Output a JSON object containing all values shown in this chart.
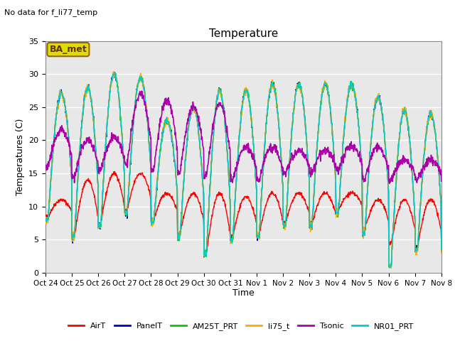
{
  "title": "Temperature",
  "note": "No data for f_li77_temp",
  "ylabel": "Temperatures (C)",
  "xlabel": "Time",
  "ylim": [
    0,
    35
  ],
  "yticks": [
    0,
    5,
    10,
    15,
    20,
    25,
    30,
    35
  ],
  "series": {
    "AirT": {
      "color": "#ff0000",
      "lw": 1.0
    },
    "PanelT": {
      "color": "#0000cc",
      "lw": 1.0
    },
    "AM25T_PRT": {
      "color": "#00cc00",
      "lw": 1.0
    },
    "li75_t": {
      "color": "#ffaa00",
      "lw": 1.0
    },
    "Tsonic": {
      "color": "#aa00aa",
      "lw": 1.2
    },
    "NR01_PRT": {
      "color": "#00cccc",
      "lw": 1.0
    }
  },
  "legend_box_color": "#dddd00",
  "legend_box_text": "BA_met",
  "background_color": "#e8e8e8",
  "grid_color": "#ffffff",
  "fig_bg": "#ffffff",
  "xtick_labels": [
    "Oct 24",
    "Oct 25",
    "Oct 26",
    "Oct 27",
    "Oct 28",
    "Oct 29",
    "Oct 30",
    "Oct 31",
    "Nov 1",
    "Nov 2",
    "Nov 3",
    "Nov 4",
    "Nov 5",
    "Nov 6",
    "Nov 7",
    "Nov 8"
  ],
  "n_days": 15,
  "pts_per_day": 96,
  "daily_min_air": [
    8.5,
    5.5,
    7.5,
    9.5,
    8.0,
    6.0,
    3.0,
    5.5,
    5.8,
    7.5,
    7.5,
    9.5,
    6.5,
    4.5,
    4.0
  ],
  "daily_max_air": [
    11.0,
    14.0,
    15.0,
    15.0,
    12.0,
    12.0,
    12.0,
    11.5,
    12.0,
    12.0,
    12.0,
    12.0,
    11.0,
    11.0,
    11.0
  ],
  "daily_min_nro": [
    8.0,
    5.5,
    7.0,
    9.0,
    7.5,
    5.5,
    3.0,
    5.0,
    5.5,
    7.0,
    7.0,
    9.0,
    6.0,
    1.0,
    3.5
  ],
  "daily_max_nro": [
    27.0,
    28.0,
    30.0,
    29.5,
    23.0,
    25.0,
    27.5,
    27.5,
    28.5,
    28.5,
    28.5,
    28.5,
    26.5,
    24.5,
    24.0
  ],
  "daily_min_tsonic": [
    16.0,
    14.5,
    15.5,
    16.5,
    15.5,
    15.0,
    14.5,
    14.0,
    14.0,
    15.0,
    15.0,
    15.5,
    14.0,
    14.0,
    14.0
  ],
  "daily_max_tsonic": [
    21.5,
    20.0,
    20.5,
    27.0,
    26.0,
    25.0,
    25.5,
    19.0,
    19.0,
    18.5,
    18.5,
    19.0,
    19.0,
    17.0,
    17.0
  ]
}
